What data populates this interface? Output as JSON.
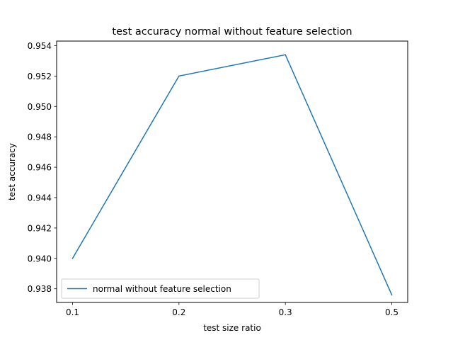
{
  "chart_data": {
    "type": "line",
    "title": "test accuracy normal without feature selection",
    "xlabel": "test size ratio",
    "ylabel": "test accuracy",
    "x_tick_labels": [
      "0.1",
      "0.2",
      "0.3",
      "0.5"
    ],
    "y_tick_labels": [
      "0.938",
      "0.940",
      "0.942",
      "0.944",
      "0.946",
      "0.948",
      "0.950",
      "0.952",
      "0.954"
    ],
    "y_ticks": [
      0.938,
      0.94,
      0.942,
      0.944,
      0.946,
      0.948,
      0.95,
      0.952,
      0.954
    ],
    "ylim": [
      0.9371,
      0.9543
    ],
    "grid": false,
    "legend_position": "lower left",
    "series": [
      {
        "name": "normal without feature selection",
        "color": "#1f77b4",
        "values": [
          0.94,
          0.952,
          0.9534,
          0.9376
        ]
      }
    ]
  }
}
